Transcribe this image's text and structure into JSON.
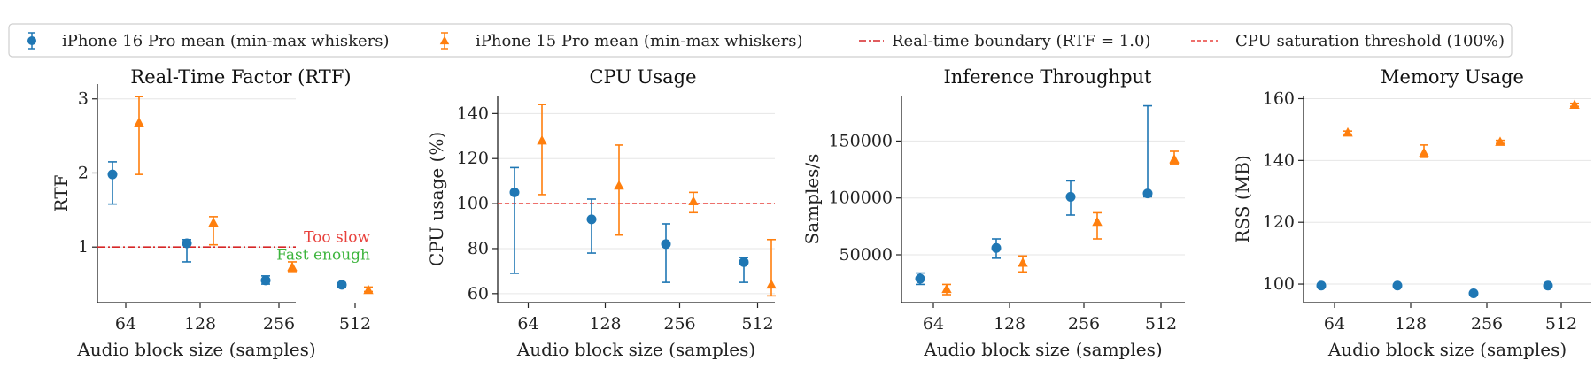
{
  "colors": {
    "series16": "#1f77b4",
    "series15": "#ff7f0e",
    "rtf_line": "#d62728",
    "cpu_line": "#e8413c",
    "too_slow": "#e8413c",
    "fast_enough": "#3cb43c",
    "grid": "#e6e6e6",
    "axis": "#222222"
  },
  "legend": {
    "items": [
      {
        "label": "iPhone 16 Pro mean (min-max whiskers)",
        "kind": "marker-circle",
        "color_key": "series16",
        "icon": "errorbar-circle-icon"
      },
      {
        "label": "iPhone 15 Pro mean (min-max whiskers)",
        "kind": "marker-triangle",
        "color_key": "series15",
        "icon": "errorbar-triangle-icon"
      },
      {
        "label": "Real-time boundary (RTF = 1.0)",
        "kind": "line-dashdot",
        "color_key": "rtf_line",
        "icon": "dashdot-line-icon"
      },
      {
        "label": "CPU saturation threshold (100%)",
        "kind": "line-dashed",
        "color_key": "cpu_line",
        "icon": "dashed-line-icon"
      }
    ]
  },
  "chart_data": [
    {
      "type": "scatter",
      "title": "Real-Time Factor (RTF)",
      "xlabel": "Audio block size (samples)",
      "ylabel": "RTF",
      "categories": [
        "64",
        "128",
        "256",
        "512"
      ],
      "ylim": [
        0.25,
        3.2
      ],
      "yticks": [
        1,
        2,
        3
      ],
      "ytick_labels": [
        "1",
        "2",
        "3"
      ],
      "grid": "horizontal",
      "series": [
        {
          "name": "iPhone 16 Pro mean (min-max whiskers)",
          "marker": "circle",
          "color_key": "series16",
          "mean": [
            1.98,
            1.05,
            0.55,
            0.49
          ],
          "min": [
            1.58,
            0.8,
            0.5,
            0.46
          ],
          "max": [
            2.15,
            1.1,
            0.61,
            0.52
          ]
        },
        {
          "name": "iPhone 15 Pro mean (min-max whiskers)",
          "marker": "triangle",
          "color_key": "series15",
          "mean": [
            2.68,
            1.33,
            0.73,
            0.42
          ],
          "min": [
            1.98,
            1.03,
            0.67,
            0.4
          ],
          "max": [
            3.03,
            1.41,
            0.8,
            0.46
          ]
        }
      ],
      "hlines": [
        {
          "y": 1.0,
          "style": "dashdot",
          "color_key": "rtf_line"
        }
      ],
      "annotations": [
        {
          "text": "Too slow",
          "y": 1.07,
          "color_key": "too_slow"
        },
        {
          "text": "Fast enough",
          "y": 0.83,
          "color_key": "fast_enough"
        }
      ]
    },
    {
      "type": "scatter",
      "title": "CPU Usage",
      "xlabel": "Audio block size (samples)",
      "ylabel": "CPU usage (%)",
      "categories": [
        "64",
        "128",
        "256",
        "512"
      ],
      "ylim": [
        56,
        148
      ],
      "yticks": [
        60,
        80,
        100,
        120,
        140
      ],
      "ytick_labels": [
        "60",
        "80",
        "100",
        "120",
        "140"
      ],
      "grid": "horizontal",
      "series": [
        {
          "name": "iPhone 16 Pro mean (min-max whiskers)",
          "marker": "circle",
          "color_key": "series16",
          "mean": [
            105,
            93,
            82,
            74
          ],
          "min": [
            69,
            78,
            65,
            65
          ],
          "max": [
            116,
            102,
            91,
            76
          ]
        },
        {
          "name": "iPhone 15 Pro mean (min-max whiskers)",
          "marker": "triangle",
          "color_key": "series15",
          "mean": [
            128,
            108,
            101,
            64
          ],
          "min": [
            104,
            86,
            96,
            59
          ],
          "max": [
            144,
            126,
            105,
            84
          ]
        }
      ],
      "hlines": [
        {
          "y": 100,
          "style": "dashed",
          "color_key": "cpu_line"
        }
      ],
      "annotations": []
    },
    {
      "type": "scatter",
      "title": "Inference Throughput",
      "xlabel": "Audio block size (samples)",
      "ylabel": "Samples/s",
      "categories": [
        "64",
        "128",
        "256",
        "512"
      ],
      "ylim": [
        8000,
        190000
      ],
      "yticks": [
        50000,
        100000,
        150000
      ],
      "ytick_labels": [
        "50000",
        "100000",
        "150000"
      ],
      "grid": "horizontal",
      "series": [
        {
          "name": "iPhone 16 Pro mean (min-max whiskers)",
          "marker": "circle",
          "color_key": "series16",
          "mean": [
            29000,
            56000,
            101000,
            104000
          ],
          "min": [
            24000,
            47000,
            85000,
            101000
          ],
          "max": [
            34000,
            64000,
            115000,
            181000
          ]
        },
        {
          "name": "iPhone 15 Pro mean (min-max whiskers)",
          "marker": "triangle",
          "color_key": "series15",
          "mean": [
            20000,
            43000,
            79000,
            134000
          ],
          "min": [
            15000,
            35000,
            64000,
            130000
          ],
          "max": [
            24000,
            49000,
            87000,
            141000
          ]
        }
      ],
      "hlines": [],
      "annotations": []
    },
    {
      "type": "scatter",
      "title": "Memory Usage",
      "xlabel": "Audio block size (samples)",
      "ylabel": "RSS (MB)",
      "categories": [
        "64",
        "128",
        "256",
        "512"
      ],
      "ylim": [
        94,
        161
      ],
      "yticks": [
        100,
        120,
        140,
        160
      ],
      "ytick_labels": [
        "100",
        "120",
        "140",
        "160"
      ],
      "grid": "horizontal",
      "series": [
        {
          "name": "iPhone 16 Pro mean (min-max whiskers)",
          "marker": "circle",
          "color_key": "series16",
          "mean": [
            99.5,
            99.5,
            97,
            99.5
          ],
          "min": [
            99.3,
            99.3,
            96.8,
            99.3
          ],
          "max": [
            99.7,
            99.7,
            97.2,
            99.7
          ]
        },
        {
          "name": "iPhone 15 Pro mean (min-max whiskers)",
          "marker": "triangle",
          "color_key": "series15",
          "mean": [
            149,
            142.5,
            146,
            158
          ],
          "min": [
            148.5,
            141,
            145.5,
            157.5
          ],
          "max": [
            149.5,
            145,
            146.5,
            158.5
          ]
        }
      ],
      "hlines": [],
      "annotations": []
    }
  ]
}
